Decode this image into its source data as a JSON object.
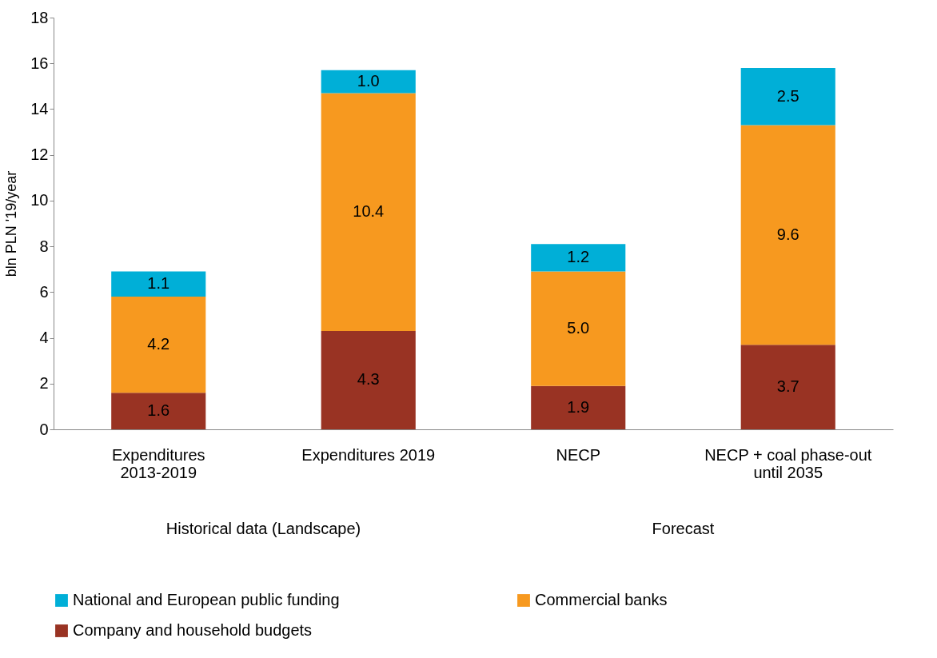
{
  "chart_data": {
    "type": "bar",
    "stacked": true,
    "ylabel": "bln PLN '19/year",
    "categories": [
      "Expenditures 2013-2019",
      "Expenditures 2019",
      "NECP",
      "NECP + coal phase-out until 2035"
    ],
    "series": [
      {
        "name": "Company and household budgets",
        "color": "#993323",
        "values": [
          1.6,
          4.3,
          1.9,
          3.7
        ]
      },
      {
        "name": "Commercial banks",
        "color": "#f7991f",
        "values": [
          4.2,
          10.4,
          5.0,
          9.6
        ]
      },
      {
        "name": "National and European public funding",
        "color": "#00afd7",
        "values": [
          1.1,
          1.0,
          1.2,
          2.5
        ]
      }
    ],
    "ylim": [
      0,
      18
    ],
    "yticks": [
      0,
      2,
      4,
      6,
      8,
      10,
      12,
      14,
      16,
      18
    ],
    "value_labels": [
      [
        "1.6",
        "4.3",
        "1.9",
        "3.7"
      ],
      [
        "4.2",
        "10.4",
        "5.0",
        "9.6"
      ],
      [
        "1.1",
        "1.0",
        "1.2",
        "2.5"
      ]
    ],
    "grid": false,
    "legend": "bottom",
    "annotations": [
      "Historical data (Landscape)",
      "Forecast"
    ]
  }
}
